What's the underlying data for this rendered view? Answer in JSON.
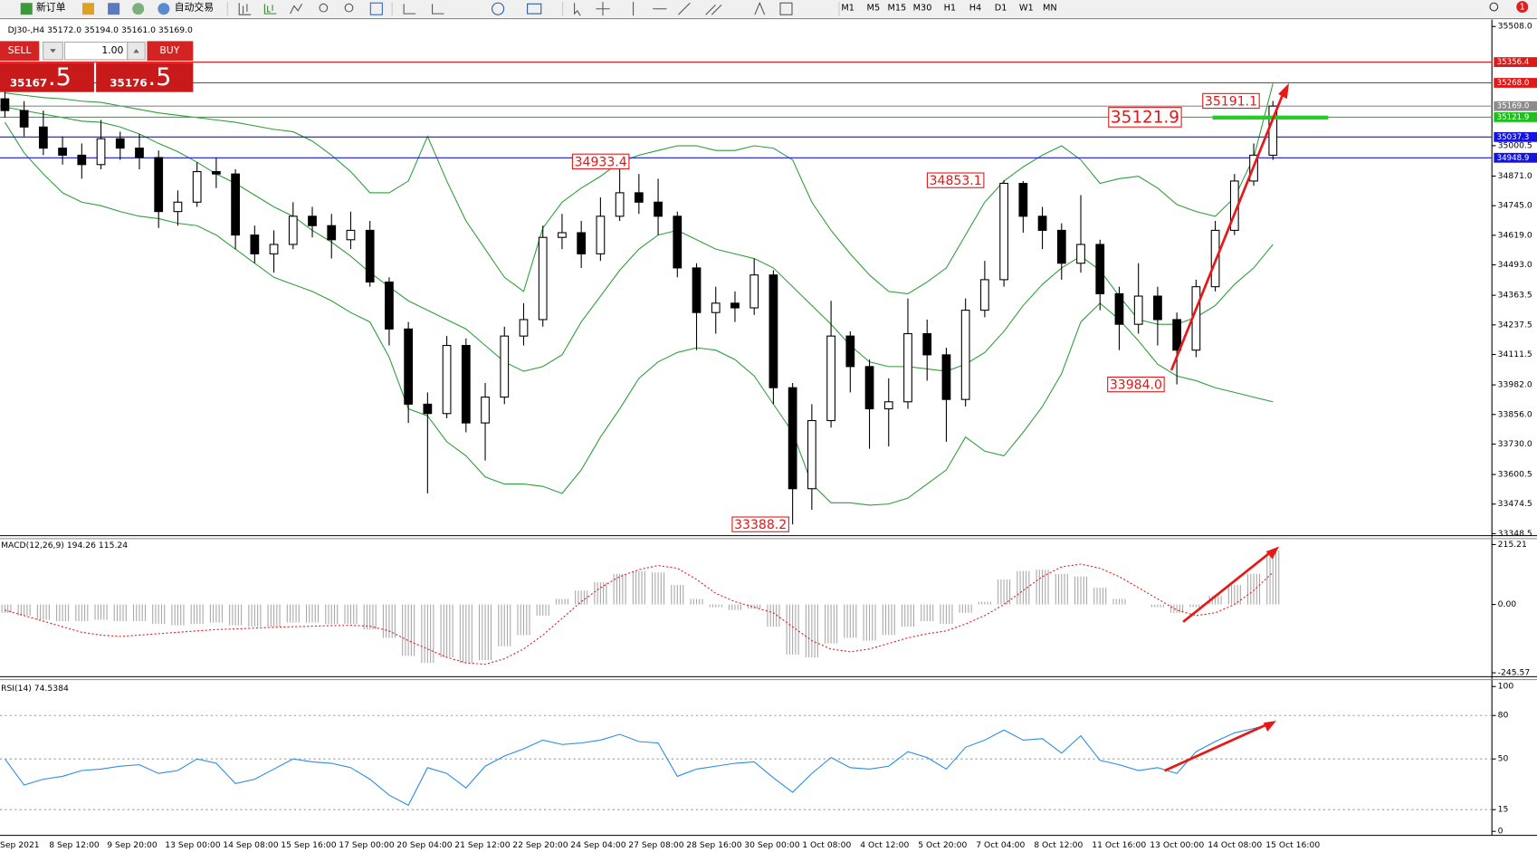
{
  "toolbar": {
    "new_order": "新订单",
    "auto_trading": "自动交易",
    "timeframes": [
      "M1",
      "M5",
      "M15",
      "M30",
      "H1",
      "H4",
      "D1",
      "W1",
      "MN"
    ],
    "notification_count": "1"
  },
  "order_panel": {
    "sell": "SELL",
    "buy": "BUY",
    "lots": "1.00",
    "sell_price": "35167",
    "sell_price_frac": ".5",
    "buy_price": "35176",
    "buy_price_frac": ".5"
  },
  "chart_data": [
    {
      "type": "candlestick",
      "title": "DJ30-,H4  35172.0 35194.0 35161.0 35169.0",
      "x_labels": [
        "Sep 2021",
        "8 Sep 12:00",
        "9 Sep 20:00",
        "13 Sep 00:00",
        "14 Sep 08:00",
        "15 Sep 16:00",
        "17 Sep 00:00",
        "20 Sep 04:00",
        "21 Sep 12:00",
        "22 Sep 20:00",
        "24 Sep 04:00",
        "27 Sep 08:00",
        "28 Sep 16:00",
        "30 Sep 00:00",
        "1 Oct 08:00",
        "4 Oct 12:00",
        "5 Oct 20:00",
        "7 Oct 04:00",
        "8 Oct 12:00",
        "11 Oct 16:00",
        "13 Oct 00:00",
        "14 Oct 08:00",
        "15 Oct 16:00"
      ],
      "open": [
        35200,
        35150,
        35080,
        34990,
        34960,
        34920,
        35030,
        34990,
        34950,
        34720,
        34760,
        34890,
        34880,
        34620,
        34540,
        34580,
        34700,
        34660,
        34600,
        34640,
        34420,
        34220,
        33900,
        33860,
        34150,
        33820,
        33930,
        34190,
        34260,
        34610,
        34630,
        34540,
        34700,
        34800,
        34760,
        34700,
        34480,
        34290,
        34330,
        34310,
        34450,
        33970,
        33540,
        33830,
        34190,
        34060,
        33880,
        33910,
        34200,
        34110,
        33920,
        34300,
        34430,
        34840,
        34700,
        34640,
        34500,
        34580,
        34370,
        34240,
        34360,
        34260,
        34130,
        34400,
        34640,
        34850,
        34960
      ],
      "high": [
        35240,
        35190,
        35150,
        35040,
        35010,
        35110,
        35060,
        35050,
        34980,
        34810,
        34930,
        34950,
        34900,
        34660,
        34640,
        34760,
        34740,
        34710,
        34720,
        34680,
        34440,
        34250,
        33950,
        34190,
        34180,
        33990,
        34230,
        34330,
        34660,
        34710,
        34680,
        34780,
        34933.4,
        34880,
        34860,
        34720,
        34500,
        34400,
        34380,
        34520,
        34470,
        33990,
        33900,
        34340,
        34210,
        34090,
        34010,
        34350,
        34260,
        34140,
        34350,
        34510,
        34853.1,
        34850,
        34740,
        34670,
        34790,
        34600,
        34400,
        34500,
        34400,
        34290,
        34430,
        34680,
        34880,
        35010,
        35191.1
      ],
      "low": [
        35120,
        35040,
        34960,
        34920,
        34860,
        34900,
        34940,
        34900,
        34650,
        34660,
        34740,
        34820,
        34560,
        34500,
        34460,
        34560,
        34610,
        34520,
        34560,
        34400,
        34150,
        33820,
        33520,
        33840,
        33780,
        33660,
        33900,
        34150,
        34230,
        34560,
        34480,
        34510,
        34680,
        34710,
        34620,
        34440,
        34130,
        34200,
        34250,
        34280,
        33900,
        33388.2,
        33450,
        33800,
        33950,
        33710,
        33720,
        33880,
        34000,
        33740,
        33890,
        34270,
        34400,
        34630,
        34560,
        34430,
        34460,
        34300,
        34130,
        34200,
        34150,
        33984.0,
        34100,
        34380,
        34620,
        34830,
        34940
      ],
      "close": [
        35150,
        35080,
        34990,
        34960,
        34920,
        35030,
        34990,
        34950,
        34720,
        34760,
        34890,
        34880,
        34620,
        34540,
        34580,
        34700,
        34660,
        34600,
        34640,
        34420,
        34220,
        33900,
        33860,
        34150,
        33820,
        33930,
        34190,
        34260,
        34610,
        34630,
        34540,
        34700,
        34800,
        34760,
        34700,
        34480,
        34290,
        34330,
        34310,
        34450,
        33970,
        33540,
        33830,
        34190,
        34060,
        33880,
        33910,
        34200,
        34110,
        33920,
        34300,
        34430,
        34840,
        34700,
        34640,
        34500,
        34580,
        34370,
        34240,
        34360,
        34260,
        34130,
        34400,
        34640,
        34850,
        34960,
        35169
      ],
      "bollinger": {
        "color": "#2e9e3a",
        "upper": [
          35225,
          35215,
          35205,
          35200,
          35190,
          35185,
          35170,
          35155,
          35140,
          35130,
          35120,
          35110,
          35100,
          35085,
          35070,
          35060,
          35020,
          34960,
          34890,
          34800,
          34800,
          34850,
          35040,
          34850,
          34680,
          34560,
          34440,
          34380,
          34650,
          34760,
          34820,
          34870,
          34930,
          34960,
          34980,
          35000,
          35000,
          34980,
          34980,
          35000,
          34990,
          34940,
          34760,
          34640,
          34540,
          34450,
          34380,
          34370,
          34420,
          34480,
          34620,
          34760,
          34850,
          34910,
          34960,
          35000,
          34940,
          34840,
          34860,
          34870,
          34820,
          34750,
          34720,
          34700,
          34780,
          34950,
          35265
        ],
        "middle": [
          35165,
          35150,
          35135,
          35120,
          35105,
          35100,
          35080,
          35050,
          35010,
          34975,
          34930,
          34880,
          34840,
          34790,
          34740,
          34700,
          34640,
          34590,
          34530,
          34460,
          34400,
          34340,
          34300,
          34260,
          34220,
          34150,
          34080,
          34040,
          34060,
          34110,
          34250,
          34360,
          34470,
          34560,
          34620,
          34640,
          34600,
          34560,
          34540,
          34520,
          34480,
          34400,
          34320,
          34240,
          34150,
          34080,
          34060,
          34060,
          34050,
          34040,
          34070,
          34120,
          34210,
          34320,
          34410,
          34480,
          34530,
          34470,
          34360,
          34260,
          34240,
          34240,
          34270,
          34320,
          34410,
          34480,
          34580
        ],
        "lower": [
          35100,
          34970,
          34880,
          34800,
          34760,
          34745,
          34720,
          34700,
          34690,
          34670,
          34660,
          34620,
          34560,
          34500,
          34440,
          34410,
          34380,
          34340,
          34290,
          34250,
          34100,
          33880,
          33850,
          33740,
          33680,
          33590,
          33560,
          33560,
          33550,
          33520,
          33620,
          33760,
          33880,
          34010,
          34080,
          34120,
          34140,
          34130,
          34090,
          34020,
          33900,
          33780,
          33560,
          33480,
          33480,
          33470,
          33475,
          33500,
          33560,
          33620,
          33760,
          33700,
          33680,
          33780,
          33890,
          34030,
          34250,
          34330,
          34260,
          34170,
          34070,
          34020,
          34000,
          33970,
          33950,
          33930,
          33910
        ]
      },
      "ylim": [
        33340,
        35529
      ],
      "yticks": [
        {
          "value": 35508,
          "label": "35508.0"
        },
        35000.5,
        {
          "value": 34871,
          "label": "34871.0"
        },
        {
          "value": 34745,
          "label": "34745.0"
        },
        {
          "value": 34619,
          "label": "34619.0"
        },
        {
          "value": 34493,
          "label": "34493.0"
        },
        34363.5,
        34237.5,
        34111.5,
        {
          "value": 33982,
          "label": "33982.0"
        },
        {
          "value": 33856,
          "label": "33856.0"
        },
        {
          "value": 33730,
          "label": "33730.0"
        },
        33600.5,
        33474.5,
        33348.5
      ],
      "levels": [
        {
          "value": 35356.4,
          "color": "#e01818"
        },
        {
          "value": 35268,
          "label": "35268.0",
          "color": "#e01818"
        },
        {
          "value": 35169,
          "label": "35169.0",
          "color": "#8c8c8c"
        },
        {
          "value": 35121.9,
          "color": "#1fbf1f"
        },
        {
          "value": 35037.3,
          "color": "#1414e0"
        },
        {
          "value": 34948.9,
          "color": "#1414e0"
        }
      ],
      "annotations": [
        34933.4,
        34853.1,
        33388.2,
        {
          "value": 33984,
          "label": "33984.0"
        },
        35191.1,
        35121.9
      ]
    },
    {
      "type": "macd",
      "title": "MACD(12,26,9) 194.26 115.24",
      "histogram": {
        "color": "#a8a8a8",
        "values": [
          -30,
          -40,
          -55,
          -60,
          -60,
          -55,
          -60,
          -60,
          -70,
          -75,
          -70,
          -65,
          -75,
          -80,
          -80,
          -65,
          -65,
          -70,
          -70,
          -90,
          -120,
          -185,
          -210,
          -190,
          -210,
          -200,
          -150,
          -110,
          -40,
          20,
          50,
          80,
          110,
          120,
          115,
          70,
          20,
          -10,
          -20,
          -15,
          -80,
          -180,
          -190,
          -140,
          -120,
          -130,
          -110,
          -80,
          -60,
          -70,
          -30,
          10,
          90,
          120,
          125,
          110,
          100,
          60,
          20,
          0,
          -10,
          -30,
          -10,
          30,
          70,
          110,
          194.26
        ]
      },
      "signal": {
        "color": "#e02020",
        "values": [
          -20,
          -40,
          -60,
          -80,
          -100,
          -110,
          -115,
          -110,
          -105,
          -100,
          -95,
          -90,
          -88,
          -85,
          -82,
          -80,
          -78,
          -76,
          -75,
          -78,
          -95,
          -130,
          -160,
          -190,
          -210,
          -215,
          -195,
          -160,
          -110,
          -50,
          10,
          60,
          100,
          125,
          140,
          130,
          90,
          40,
          10,
          -10,
          -30,
          -80,
          -130,
          -160,
          -170,
          -160,
          -140,
          -120,
          -105,
          -95,
          -70,
          -40,
          0,
          50,
          100,
          135,
          145,
          130,
          100,
          60,
          20,
          -20,
          -40,
          -30,
          0,
          50,
          115.24
        ]
      },
      "ylim": [
        -256,
        233
      ],
      "yticks": [
        215.21,
        {
          "value": 0,
          "label": "0.00"
        },
        -245.57
      ]
    },
    {
      "type": "rsi",
      "title": "RSI(14) 74.5384",
      "color": "#2a8ce6",
      "values": [
        50,
        32,
        36,
        38,
        42,
        43,
        45,
        46,
        40,
        42,
        50,
        47,
        33,
        36,
        43,
        50,
        48,
        47,
        44,
        36,
        25,
        18,
        44,
        40,
        30,
        45,
        52,
        57,
        63,
        60,
        61,
        63,
        67,
        62,
        61,
        38,
        43,
        45,
        47,
        48,
        37,
        27,
        40,
        51,
        44,
        43,
        45,
        55,
        51,
        43,
        58,
        63,
        70,
        63,
        64,
        54,
        66,
        49,
        46,
        42,
        44,
        40,
        55,
        62,
        68,
        71,
        74.5384
      ],
      "ylim": [
        -1.4,
        103.4
      ],
      "yticks": [
        100,
        80,
        50,
        15,
        0
      ],
      "levels": [
        80,
        50,
        15
      ]
    }
  ]
}
